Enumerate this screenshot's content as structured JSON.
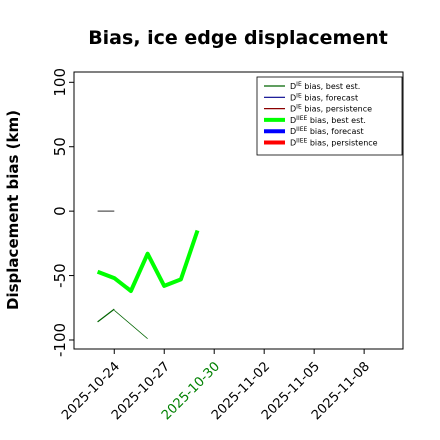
{
  "chart_data": {
    "type": "line",
    "title": "Bias, ice edge displacement",
    "ylabel": "Displacement bias (km)",
    "xlabel": "",
    "ylim": [
      -107,
      108
    ],
    "xlim": [
      "2025-10-21T14:00",
      "2025-11-10T08:00"
    ],
    "y_ticks": [
      -100,
      -50,
      0,
      50,
      100
    ],
    "x_ticks": [
      {
        "date": "2025-10-24",
        "label": "2025-10-24",
        "color": "#000000"
      },
      {
        "date": "2025-10-27",
        "label": "2025-10-27",
        "color": "#000000"
      },
      {
        "date": "2025-10-30",
        "label": "2025-10-30",
        "color": "#008000"
      },
      {
        "date": "2025-11-02",
        "label": "2025-11-02",
        "color": "#000000"
      },
      {
        "date": "2025-11-05",
        "label": "2025-11-05",
        "color": "#000000"
      },
      {
        "date": "2025-11-08",
        "label": "2025-11-08",
        "color": "#000000"
      }
    ],
    "series": [
      {
        "name": "D^IE bias, best est.",
        "sup": "IE",
        "label_rest": " bias, best est.",
        "color": "#006400",
        "width": 1.2,
        "x": [
          "2025-10-23",
          "2025-10-24"
        ],
        "y": [
          -86,
          -76
        ]
      },
      {
        "name": "D^IE bias, forecast",
        "sup": "IE",
        "label_rest": " bias, forecast",
        "color": "#00008b",
        "width": 1.2,
        "x": [],
        "y": []
      },
      {
        "name": "D^IE bias, persistence",
        "sup": "IE",
        "label_rest": " bias, persistence",
        "color": "#8b0000",
        "width": 1.2,
        "x": [],
        "y": []
      },
      {
        "name": "D^IIEE bias, best est.",
        "sup": "IIEE",
        "label_rest": " bias, best est.",
        "color": "#00ff00",
        "width": 4,
        "x": [
          "2025-10-23",
          "2025-10-24",
          "2025-10-25",
          "2025-10-26",
          "2025-10-27",
          "2025-10-28",
          "2025-10-29"
        ],
        "y": [
          -47,
          -52,
          -62,
          -33,
          -58,
          -53,
          -15
        ]
      },
      {
        "name": "D^IIEE bias, forecast",
        "sup": "IIEE",
        "label_rest": " bias, forecast",
        "color": "#0000ff",
        "width": 4,
        "x": [],
        "y": []
      },
      {
        "name": "D^IIEE bias, persistence",
        "sup": "IIEE",
        "label_rest": " bias, persistence",
        "color": "#ff0000",
        "width": 4,
        "x": [],
        "y": []
      }
    ],
    "extra_lines": [
      {
        "color": "#006400",
        "width": 0.7,
        "x": [
          "2025-10-24",
          "2025-10-26"
        ],
        "y": [
          -77,
          -99
        ]
      },
      {
        "color": "#555555",
        "width": 1.2,
        "x": [
          "2025-10-23",
          "2025-10-24"
        ],
        "y": [
          0,
          0
        ]
      }
    ],
    "legend_position": "top-right",
    "legend_prefix": "D",
    "grid": false
  }
}
